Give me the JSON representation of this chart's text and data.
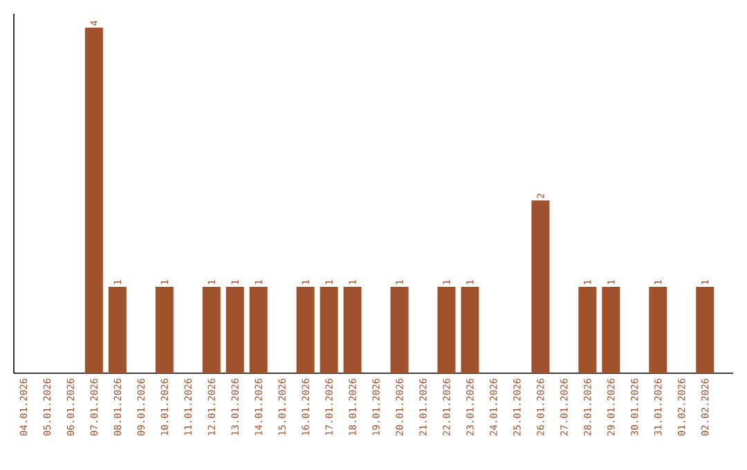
{
  "chart_data": {
    "type": "bar",
    "color": "#a0522d",
    "categories": [
      "04.01.2026",
      "05.01.2026",
      "06.01.2026",
      "07.01.2026",
      "08.01.2026",
      "09.01.2026",
      "10.01.2026",
      "11.01.2026",
      "12.01.2026",
      "13.01.2026",
      "14.01.2026",
      "15.01.2026",
      "16.01.2026",
      "17.01.2026",
      "18.01.2026",
      "19.01.2026",
      "20.01.2026",
      "21.01.2026",
      "22.01.2026",
      "23.01.2026",
      "24.01.2026",
      "25.01.2026",
      "26.01.2026",
      "27.01.2026",
      "28.01.2026",
      "29.01.2026",
      "30.01.2026",
      "31.01.2026",
      "01.02.2026",
      "02.02.2026"
    ],
    "values": [
      0,
      0,
      0,
      4,
      1,
      0,
      1,
      0,
      1,
      1,
      1,
      0,
      1,
      1,
      1,
      0,
      1,
      0,
      1,
      1,
      0,
      0,
      2,
      0,
      1,
      1,
      0,
      1,
      0,
      1
    ],
    "value_labels": [
      null,
      null,
      null,
      "4",
      "1",
      null,
      "1",
      null,
      "1",
      "1",
      "1",
      null,
      "1",
      "1",
      "1",
      null,
      "1",
      null,
      "1",
      "1",
      null,
      null,
      "2",
      null,
      "1",
      "1",
      null,
      "1",
      null,
      "1"
    ],
    "ylim": [
      0,
      4.16
    ],
    "tick_labels": "x"
  }
}
